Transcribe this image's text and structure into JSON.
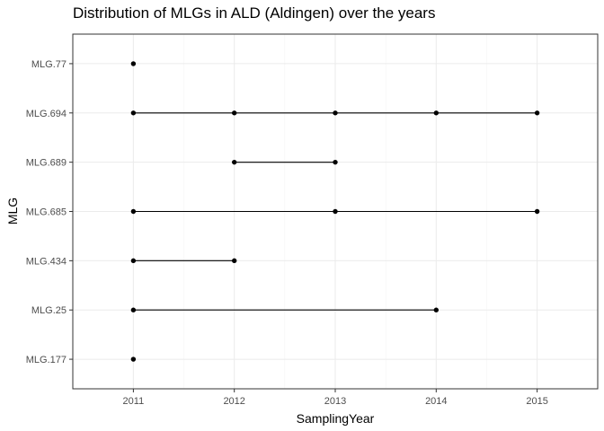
{
  "chart_data": {
    "type": "scatter",
    "title": "Distribution of MLGs in ALD (Aldingen) over the years",
    "xlabel": "SamplingYear",
    "ylabel": "MLG",
    "x_ticks": [
      2011,
      2012,
      2013,
      2014,
      2015
    ],
    "xlim": [
      2010.4,
      2015.6
    ],
    "categories": [
      "MLG.177",
      "MLG.25",
      "MLG.434",
      "MLG.685",
      "MLG.689",
      "MLG.694",
      "MLG.77"
    ],
    "grid": true,
    "legend": "none",
    "series": [
      {
        "category": "MLG.177",
        "years": [
          2011
        ]
      },
      {
        "category": "MLG.25",
        "years": [
          2011,
          2014
        ]
      },
      {
        "category": "MLG.434",
        "years": [
          2011,
          2012
        ]
      },
      {
        "category": "MLG.685",
        "years": [
          2011,
          2013,
          2015
        ]
      },
      {
        "category": "MLG.689",
        "years": [
          2012,
          2013
        ]
      },
      {
        "category": "MLG.694",
        "years": [
          2011,
          2012,
          2013,
          2014,
          2015
        ]
      },
      {
        "category": "MLG.77",
        "years": [
          2011
        ]
      }
    ],
    "colors": {
      "points": "#000000",
      "lines": "#000000",
      "grid": "#ebebeb",
      "panel_border": "#333333"
    }
  }
}
